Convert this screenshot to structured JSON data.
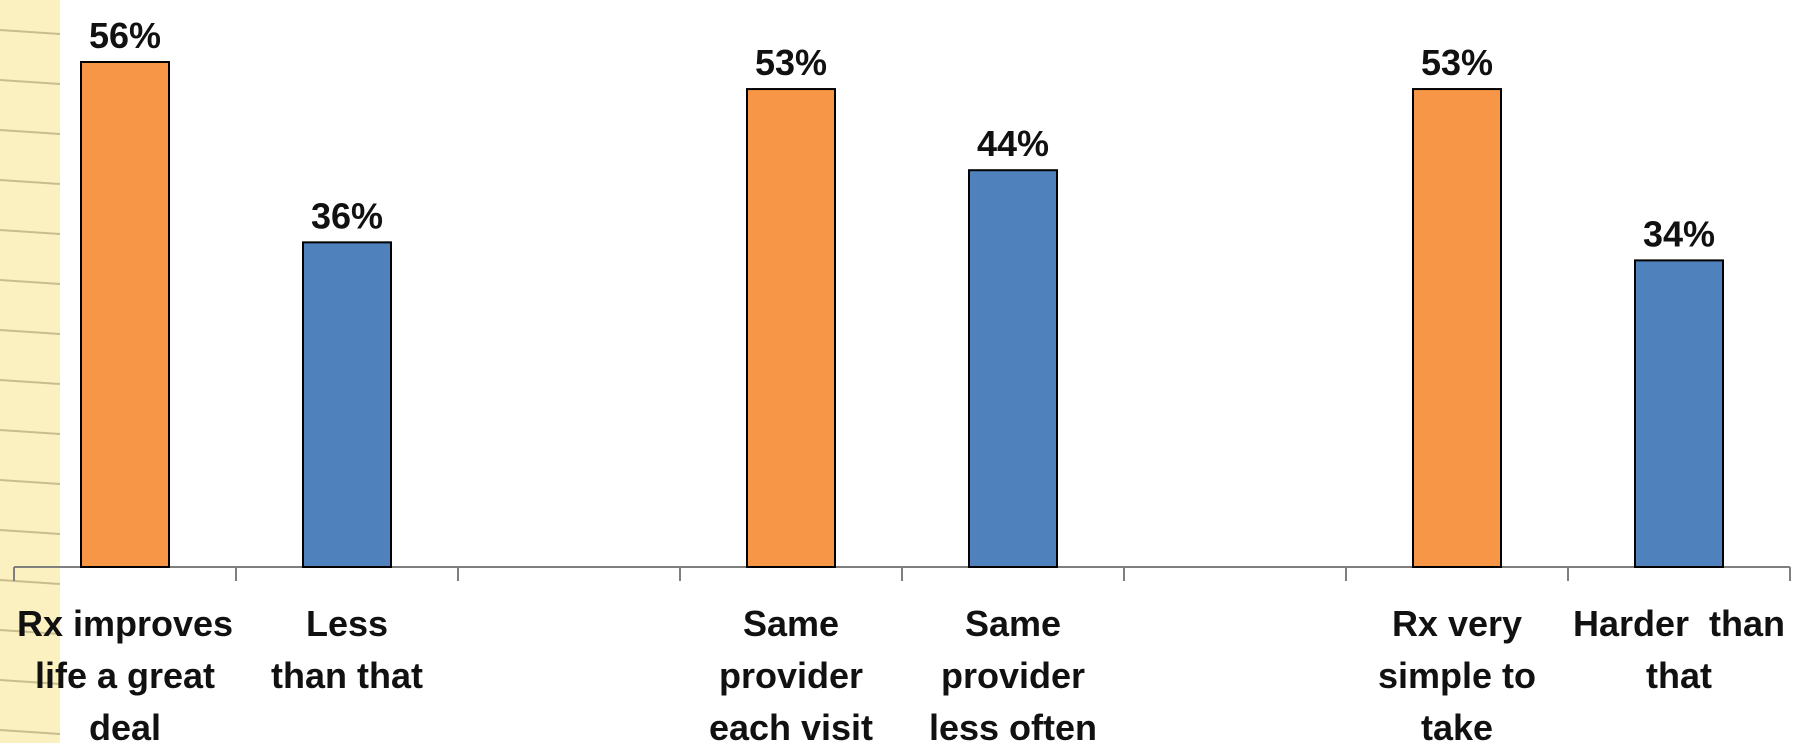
{
  "chart_data": {
    "type": "bar",
    "categories": [
      [
        "Rx improves",
        "life a great",
        "deal"
      ],
      [
        "Less",
        "than that"
      ],
      [],
      [
        "Same",
        "provider",
        "each visit"
      ],
      [
        "Same",
        "provider",
        "less often"
      ],
      [],
      [
        "Rx very",
        "simple to",
        "take"
      ],
      [
        "Harder  than",
        "that"
      ]
    ],
    "values": [
      56,
      36,
      null,
      53,
      44,
      null,
      53,
      34
    ],
    "data_labels": [
      "56%",
      "36%",
      "",
      "53%",
      "44%",
      "",
      "53%",
      "34%"
    ],
    "bar_colors": [
      "#f79646",
      "#4f81bd",
      "",
      "#f79646",
      "#4f81bd",
      "",
      "#f79646",
      "#4f81bd"
    ],
    "title": "",
    "xlabel": "",
    "ylabel": "",
    "ylim": [
      0,
      56
    ],
    "grid": false,
    "legend": "none"
  },
  "colors": {
    "accent_orange": "#f79646",
    "accent_blue": "#4f81bd",
    "axis": "#7f7f7f",
    "notepad_paper": "#fbf0bf"
  }
}
